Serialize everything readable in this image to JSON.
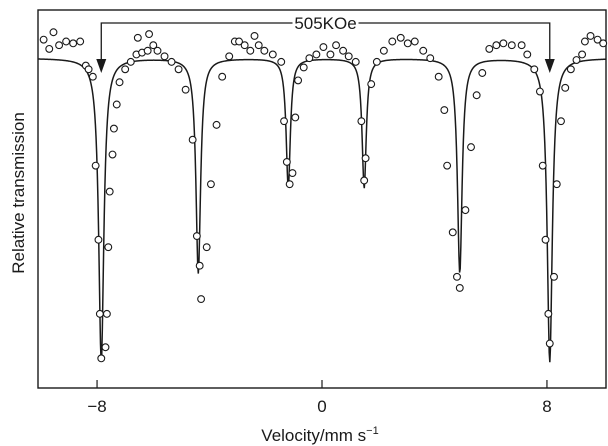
{
  "chart_data": {
    "type": "scatter",
    "title": "",
    "xlabel": "Velocity/mm s",
    "xlabel_superscript": "−1",
    "ylabel": "Relative transmission",
    "xlim": [
      -10.1,
      10.1
    ],
    "ylim": [
      0.0,
      1.02
    ],
    "xticks": [
      -8,
      0,
      8
    ],
    "xtick_labels": [
      "−8",
      "0",
      "8"
    ],
    "grid": false,
    "legend": "none",
    "marker": "open-circle",
    "colors": {
      "line": "#1a1a1a",
      "marker_edge": "#1a1a1a",
      "marker_fill": "#ffffff",
      "background": "#ffffff"
    },
    "fit_line": {
      "baseline": 0.89,
      "peaks": [
        {
          "center": -7.85,
          "depth": 0.82,
          "width": 0.22
        },
        {
          "center": -4.4,
          "depth": 0.58,
          "width": 0.2
        },
        {
          "center": -1.2,
          "depth": 0.35,
          "width": 0.18
        },
        {
          "center": 1.5,
          "depth": 0.35,
          "width": 0.18
        },
        {
          "center": 4.9,
          "depth": 0.58,
          "width": 0.2
        },
        {
          "center": 8.1,
          "depth": 0.82,
          "width": 0.22
        }
      ]
    },
    "points": [
      {
        "x": -9.9,
        "y": 0.94
      },
      {
        "x": -9.7,
        "y": 0.915
      },
      {
        "x": -9.55,
        "y": 0.96
      },
      {
        "x": -9.35,
        "y": 0.925
      },
      {
        "x": -9.1,
        "y": 0.935
      },
      {
        "x": -8.85,
        "y": 0.93
      },
      {
        "x": -8.6,
        "y": 0.935
      },
      {
        "x": -8.4,
        "y": 0.87
      },
      {
        "x": -8.3,
        "y": 0.86
      },
      {
        "x": -8.15,
        "y": 0.84
      },
      {
        "x": -8.05,
        "y": 0.6
      },
      {
        "x": -7.95,
        "y": 0.4
      },
      {
        "x": -7.9,
        "y": 0.2
      },
      {
        "x": -7.85,
        "y": 0.08
      },
      {
        "x": -7.7,
        "y": 0.11
      },
      {
        "x": -7.65,
        "y": 0.2
      },
      {
        "x": -7.6,
        "y": 0.38
      },
      {
        "x": -7.55,
        "y": 0.53
      },
      {
        "x": -7.45,
        "y": 0.63
      },
      {
        "x": -7.4,
        "y": 0.7
      },
      {
        "x": -7.3,
        "y": 0.765
      },
      {
        "x": -7.2,
        "y": 0.825
      },
      {
        "x": -7.0,
        "y": 0.86
      },
      {
        "x": -6.8,
        "y": 0.88
      },
      {
        "x": -6.6,
        "y": 0.9
      },
      {
        "x": -6.4,
        "y": 0.905
      },
      {
        "x": -6.55,
        "y": 0.945
      },
      {
        "x": -6.2,
        "y": 0.91
      },
      {
        "x": -6.15,
        "y": 0.955
      },
      {
        "x": -6.0,
        "y": 0.925
      },
      {
        "x": -5.85,
        "y": 0.91
      },
      {
        "x": -5.6,
        "y": 0.895
      },
      {
        "x": -5.35,
        "y": 0.88
      },
      {
        "x": -5.1,
        "y": 0.86
      },
      {
        "x": -4.85,
        "y": 0.805
      },
      {
        "x": -4.6,
        "y": 0.67
      },
      {
        "x": -4.45,
        "y": 0.41
      },
      {
        "x": -4.35,
        "y": 0.33
      },
      {
        "x": -4.3,
        "y": 0.24
      },
      {
        "x": -4.1,
        "y": 0.38
      },
      {
        "x": -3.95,
        "y": 0.55
      },
      {
        "x": -3.75,
        "y": 0.71
      },
      {
        "x": -3.55,
        "y": 0.84
      },
      {
        "x": -3.3,
        "y": 0.895
      },
      {
        "x": -3.1,
        "y": 0.935
      },
      {
        "x": -2.95,
        "y": 0.935
      },
      {
        "x": -2.75,
        "y": 0.925
      },
      {
        "x": -2.55,
        "y": 0.91
      },
      {
        "x": -2.4,
        "y": 0.95
      },
      {
        "x": -2.25,
        "y": 0.925
      },
      {
        "x": -2.05,
        "y": 0.91
      },
      {
        "x": -1.75,
        "y": 0.9
      },
      {
        "x": -1.45,
        "y": 0.88
      },
      {
        "x": -1.35,
        "y": 0.72
      },
      {
        "x": -1.25,
        "y": 0.61
      },
      {
        "x": -1.15,
        "y": 0.55
      },
      {
        "x": -1.05,
        "y": 0.58
      },
      {
        "x": -0.95,
        "y": 0.73
      },
      {
        "x": -0.85,
        "y": 0.83
      },
      {
        "x": -0.65,
        "y": 0.865
      },
      {
        "x": -0.45,
        "y": 0.89
      },
      {
        "x": -0.2,
        "y": 0.9
      },
      {
        "x": 0.05,
        "y": 0.92
      },
      {
        "x": 0.3,
        "y": 0.9
      },
      {
        "x": 0.5,
        "y": 0.925
      },
      {
        "x": 0.75,
        "y": 0.91
      },
      {
        "x": 0.95,
        "y": 0.895
      },
      {
        "x": 1.2,
        "y": 0.88
      },
      {
        "x": 1.4,
        "y": 0.72
      },
      {
        "x": 1.5,
        "y": 0.56
      },
      {
        "x": 1.55,
        "y": 0.62
      },
      {
        "x": 1.75,
        "y": 0.82
      },
      {
        "x": 1.95,
        "y": 0.88
      },
      {
        "x": 2.2,
        "y": 0.91
      },
      {
        "x": 2.5,
        "y": 0.935
      },
      {
        "x": 2.8,
        "y": 0.945
      },
      {
        "x": 3.05,
        "y": 0.93
      },
      {
        "x": 3.3,
        "y": 0.935
      },
      {
        "x": 3.6,
        "y": 0.91
      },
      {
        "x": 3.85,
        "y": 0.89
      },
      {
        "x": 4.15,
        "y": 0.84
      },
      {
        "x": 4.35,
        "y": 0.75
      },
      {
        "x": 4.45,
        "y": 0.6
      },
      {
        "x": 4.65,
        "y": 0.42
      },
      {
        "x": 4.8,
        "y": 0.3
      },
      {
        "x": 4.9,
        "y": 0.27
      },
      {
        "x": 5.1,
        "y": 0.48
      },
      {
        "x": 5.3,
        "y": 0.65
      },
      {
        "x": 5.5,
        "y": 0.79
      },
      {
        "x": 5.7,
        "y": 0.85
      },
      {
        "x": 5.95,
        "y": 0.915
      },
      {
        "x": 6.2,
        "y": 0.925
      },
      {
        "x": 6.45,
        "y": 0.93
      },
      {
        "x": 6.75,
        "y": 0.925
      },
      {
        "x": 7.1,
        "y": 0.925
      },
      {
        "x": 7.3,
        "y": 0.9
      },
      {
        "x": 7.55,
        "y": 0.86
      },
      {
        "x": 7.75,
        "y": 0.8
      },
      {
        "x": 7.85,
        "y": 0.6
      },
      {
        "x": 7.95,
        "y": 0.4
      },
      {
        "x": 8.05,
        "y": 0.2
      },
      {
        "x": 8.1,
        "y": 0.12
      },
      {
        "x": 8.25,
        "y": 0.3
      },
      {
        "x": 8.35,
        "y": 0.55
      },
      {
        "x": 8.5,
        "y": 0.72
      },
      {
        "x": 8.65,
        "y": 0.81
      },
      {
        "x": 8.85,
        "y": 0.86
      },
      {
        "x": 9.05,
        "y": 0.885
      },
      {
        "x": 9.25,
        "y": 0.9
      },
      {
        "x": 9.35,
        "y": 0.935
      },
      {
        "x": 9.55,
        "y": 0.95
      },
      {
        "x": 9.8,
        "y": 0.94
      },
      {
        "x": 10.0,
        "y": 0.93
      }
    ],
    "annotation": {
      "label": "505KOe",
      "from_x": -7.85,
      "to_x": 8.1,
      "y_level": 0.985,
      "arrow_tip_y": 0.85
    }
  }
}
